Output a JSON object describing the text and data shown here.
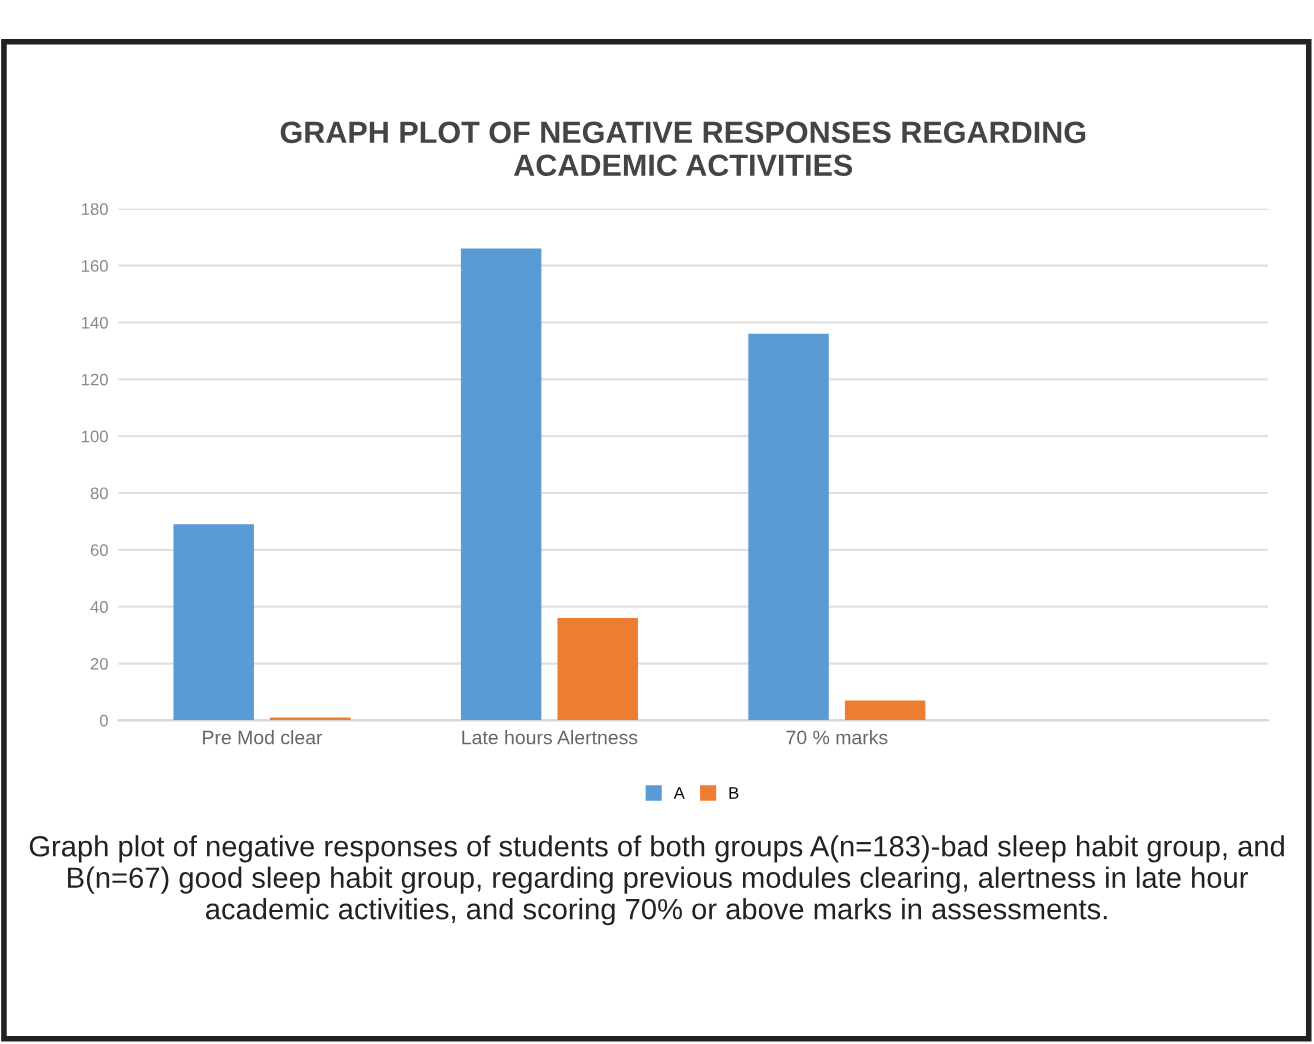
{
  "chart_data": {
    "type": "bar",
    "title": "GRAPH PLOT OF NEGATIVE RESPONSES REGARDING\nACADEMIC ACTIVITIES",
    "categories": [
      "Pre Mod clear",
      "Late hours Alertness",
      "70 % marks",
      null
    ],
    "series": [
      {
        "name": "A",
        "color": "#5b9bd5",
        "values": [
          69,
          166,
          136,
          null
        ]
      },
      {
        "name": "B",
        "color": "#ed7d31",
        "values": [
          1,
          36,
          7,
          null
        ]
      }
    ],
    "ylim": [
      0,
      180
    ],
    "yticks": [
      0,
      20,
      40,
      60,
      80,
      100,
      120,
      140,
      160,
      180
    ],
    "grid": "y",
    "legend": "bottom",
    "annotations": [
      "Graph plot of negative responses of students of both groups A(n=183)-bad sleep habit group, and B(n=67) good sleep habit group, regarding previous modules clearing, alertness in late hour academic activities, and scoring 70% or above marks in assessments."
    ]
  }
}
